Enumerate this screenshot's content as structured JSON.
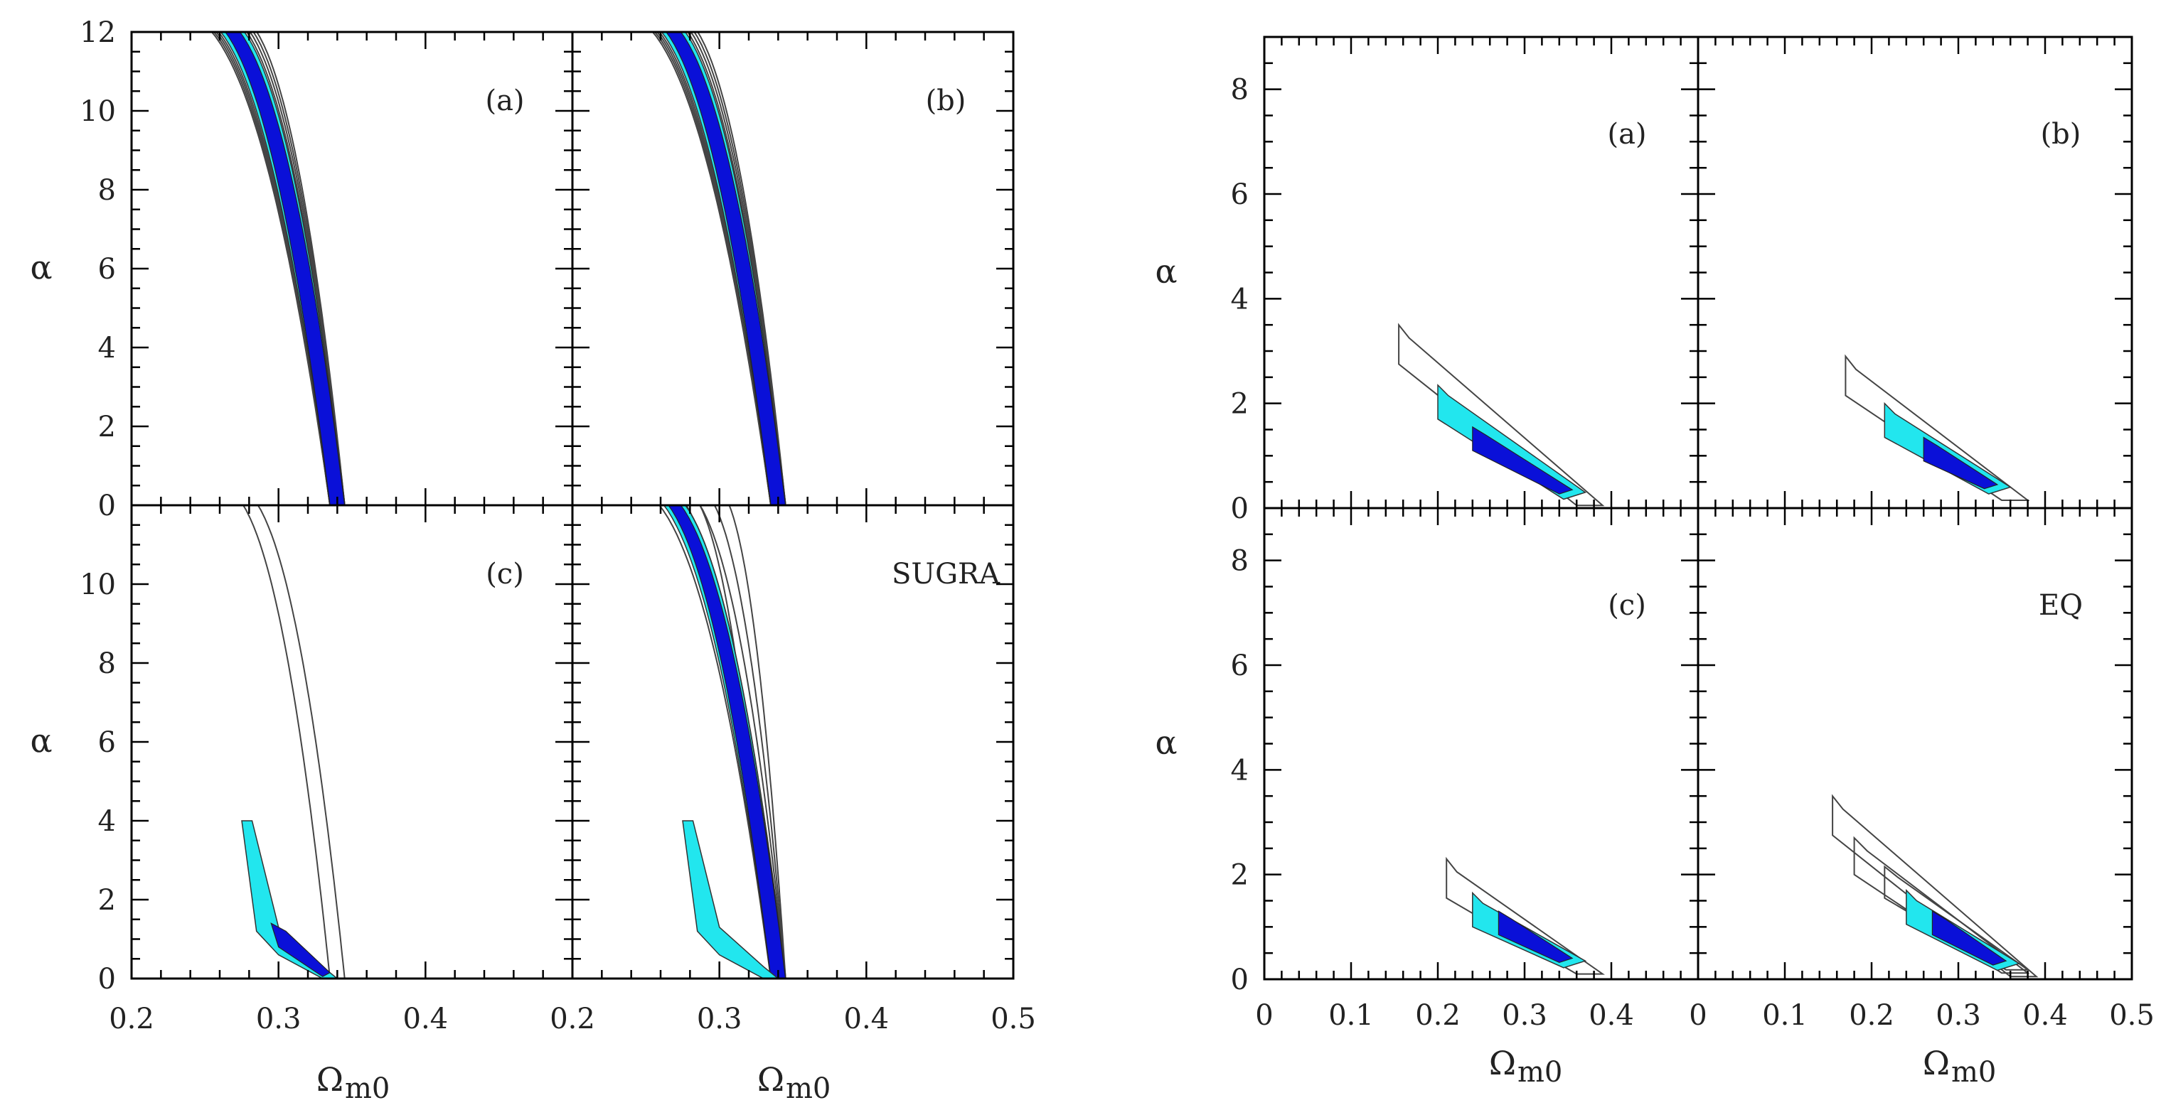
{
  "figures": [
    {
      "id": "left",
      "xlabel": "Ω",
      "xlabel_sub": "m0",
      "ylabel": "α",
      "xlim": [
        0.2,
        0.5
      ],
      "ylim": [
        0,
        12
      ],
      "x_ticks": [
        "0.2",
        "0.3",
        "0.4",
        "0.2",
        "0.3",
        "0.4",
        "0.5"
      ],
      "y_ticks_top": [
        "0",
        "2",
        "4",
        "6",
        "8",
        "10",
        "12"
      ],
      "y_ticks_bottom": [
        "0",
        "2",
        "4",
        "6",
        "8",
        "10"
      ],
      "panels": [
        "(a)",
        "(b)",
        "(c)",
        "SUGRA"
      ]
    },
    {
      "id": "right",
      "xlabel": "Ω",
      "xlabel_sub": "m0",
      "ylabel": "α",
      "xlim": [
        0,
        0.5
      ],
      "ylim": [
        0,
        9
      ],
      "x_ticks": [
        "0",
        "0.1",
        "0.2",
        "0.3",
        "0.4",
        "0",
        "0.1",
        "0.2",
        "0.3",
        "0.4",
        "0.5"
      ],
      "y_ticks_top": [
        "0",
        "2",
        "4",
        "6",
        "8"
      ],
      "y_ticks_bottom": [
        "0",
        "2",
        "4",
        "6",
        "8"
      ],
      "panels": [
        "(a)",
        "(b)",
        "(c)",
        "EQ"
      ]
    }
  ],
  "colors": {
    "inner": "#0a10d8",
    "middle": "#22e6ee",
    "outline": "#444444"
  },
  "chart_data": [
    {
      "type": "contour",
      "figure": "left",
      "model": "SUGRA",
      "xlim": [
        0.2,
        0.5
      ],
      "ylim": [
        0,
        12
      ],
      "note_region_shape": "narrow band following alpha ≈ A/(Ωm0-0.22) - c, ending near Ωm0≈0.345 at α=0",
      "panels": [
        {
          "label": "(a)",
          "band_x_at_alpha12": [
            0.24,
            0.255
          ],
          "band_x_at_alpha0": [
            0.335,
            0.345
          ],
          "inner_filled": true
        },
        {
          "label": "(b)",
          "band_x_at_alpha12": [
            0.24,
            0.255
          ],
          "band_x_at_alpha0": [
            0.335,
            0.345
          ],
          "inner_filled": true
        },
        {
          "label": "(c)",
          "outer_x_at_alpha12": [
            0.258,
            0.268
          ],
          "cyan_alpha_max": 4,
          "blue_alpha_max": 1.3,
          "x_at_alpha0": 0.345
        },
        {
          "label": "SUGRA",
          "band_x_at_alpha12": [
            0.24,
            0.285
          ],
          "cyan_alpha_max": 4,
          "x_at_alpha0": 0.345
        }
      ]
    },
    {
      "type": "contour",
      "figure": "right",
      "model": "EQ",
      "xlim": [
        0,
        0.5
      ],
      "ylim": [
        0,
        9
      ],
      "panels": [
        {
          "label": "(a)",
          "outer_top": [
            0.155,
            3.5
          ],
          "outer_bottom": [
            0.39,
            0.05
          ],
          "cyan_top": [
            0.2,
            2.35
          ],
          "blue_top": [
            0.24,
            1.55
          ]
        },
        {
          "label": "(b)",
          "outer_top": [
            0.17,
            2.9
          ],
          "outer_bottom": [
            0.38,
            0.15
          ],
          "cyan_top": [
            0.215,
            2.0
          ],
          "blue_top": [
            0.26,
            1.35
          ]
        },
        {
          "label": "(c)",
          "outer_top": [
            0.21,
            2.3
          ],
          "outer_bottom": [
            0.39,
            0.1
          ],
          "cyan_top": [
            0.24,
            1.65
          ],
          "blue_top": [
            0.27,
            1.3
          ]
        },
        {
          "label": "EQ",
          "outer_top": [
            0.155,
            3.5
          ],
          "outer_bottom": [
            0.39,
            0.05
          ],
          "cyan_top": [
            0.24,
            1.7
          ],
          "blue_top": [
            0.27,
            1.3
          ]
        }
      ]
    }
  ]
}
